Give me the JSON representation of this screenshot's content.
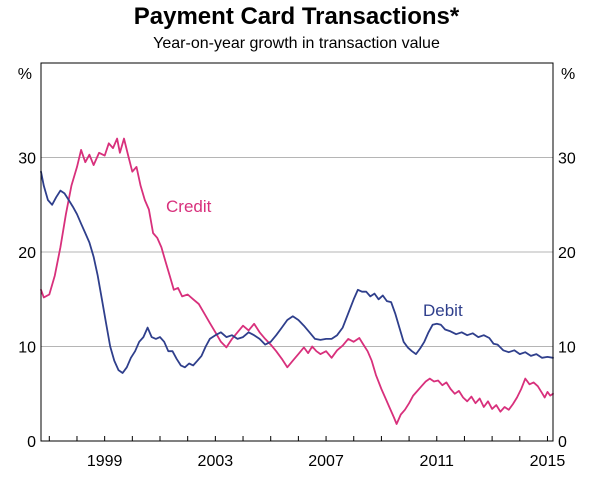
{
  "chart_data": {
    "type": "line",
    "title": "Payment Card Transactions*",
    "subtitle": "Year-on-year growth in transaction value",
    "y_unit_left": "%",
    "y_unit_right": "%",
    "xlim": [
      1996.7,
      2015.2
    ],
    "ylim": [
      0,
      40
    ],
    "x_ticks": [
      1999,
      2003,
      2007,
      2011,
      2015
    ],
    "y_ticks": [
      0,
      10,
      20,
      30
    ],
    "grid": true,
    "series": [
      {
        "name": "Credit",
        "color": "#d8307c",
        "points": [
          [
            1996.7,
            16.0
          ],
          [
            1996.8,
            15.2
          ],
          [
            1997.0,
            15.5
          ],
          [
            1997.2,
            17.5
          ],
          [
            1997.4,
            20.5
          ],
          [
            1997.6,
            24.0
          ],
          [
            1997.8,
            27.0
          ],
          [
            1998.0,
            29.0
          ],
          [
            1998.15,
            30.8
          ],
          [
            1998.3,
            29.5
          ],
          [
            1998.45,
            30.3
          ],
          [
            1998.6,
            29.2
          ],
          [
            1998.8,
            30.5
          ],
          [
            1999.0,
            30.2
          ],
          [
            1999.15,
            31.5
          ],
          [
            1999.3,
            31.0
          ],
          [
            1999.45,
            32.0
          ],
          [
            1999.55,
            30.5
          ],
          [
            1999.7,
            32.0
          ],
          [
            1999.85,
            30.2
          ],
          [
            2000.0,
            28.5
          ],
          [
            2000.15,
            29.0
          ],
          [
            2000.3,
            27.0
          ],
          [
            2000.45,
            25.5
          ],
          [
            2000.6,
            24.5
          ],
          [
            2000.75,
            22.0
          ],
          [
            2000.9,
            21.5
          ],
          [
            2001.05,
            20.5
          ],
          [
            2001.2,
            19.0
          ],
          [
            2001.35,
            17.5
          ],
          [
            2001.5,
            16.0
          ],
          [
            2001.65,
            16.2
          ],
          [
            2001.8,
            15.3
          ],
          [
            2002.0,
            15.5
          ],
          [
            2002.2,
            15.0
          ],
          [
            2002.4,
            14.5
          ],
          [
            2002.6,
            13.5
          ],
          [
            2002.8,
            12.5
          ],
          [
            2003.0,
            11.5
          ],
          [
            2003.2,
            10.5
          ],
          [
            2003.4,
            9.9
          ],
          [
            2003.6,
            10.8
          ],
          [
            2003.8,
            11.5
          ],
          [
            2004.0,
            12.2
          ],
          [
            2004.2,
            11.7
          ],
          [
            2004.4,
            12.4
          ],
          [
            2004.6,
            11.5
          ],
          [
            2004.8,
            10.8
          ],
          [
            2005.0,
            10.2
          ],
          [
            2005.2,
            9.5
          ],
          [
            2005.4,
            8.7
          ],
          [
            2005.6,
            7.8
          ],
          [
            2005.8,
            8.5
          ],
          [
            2006.0,
            9.2
          ],
          [
            2006.2,
            9.9
          ],
          [
            2006.35,
            9.3
          ],
          [
            2006.5,
            10.0
          ],
          [
            2006.65,
            9.5
          ],
          [
            2006.8,
            9.2
          ],
          [
            2007.0,
            9.5
          ],
          [
            2007.2,
            8.8
          ],
          [
            2007.4,
            9.6
          ],
          [
            2007.6,
            10.1
          ],
          [
            2007.8,
            10.8
          ],
          [
            2008.0,
            10.5
          ],
          [
            2008.2,
            10.9
          ],
          [
            2008.35,
            10.2
          ],
          [
            2008.5,
            9.5
          ],
          [
            2008.65,
            8.5
          ],
          [
            2008.8,
            7.0
          ],
          [
            2009.0,
            5.5
          ],
          [
            2009.15,
            4.5
          ],
          [
            2009.3,
            3.5
          ],
          [
            2009.45,
            2.5
          ],
          [
            2009.55,
            1.8
          ],
          [
            2009.7,
            2.8
          ],
          [
            2009.85,
            3.3
          ],
          [
            2010.0,
            4.0
          ],
          [
            2010.15,
            4.8
          ],
          [
            2010.3,
            5.3
          ],
          [
            2010.45,
            5.8
          ],
          [
            2010.6,
            6.3
          ],
          [
            2010.75,
            6.6
          ],
          [
            2010.9,
            6.3
          ],
          [
            2011.05,
            6.4
          ],
          [
            2011.2,
            5.9
          ],
          [
            2011.35,
            6.2
          ],
          [
            2011.5,
            5.5
          ],
          [
            2011.65,
            5.0
          ],
          [
            2011.8,
            5.3
          ],
          [
            2011.95,
            4.6
          ],
          [
            2012.1,
            4.2
          ],
          [
            2012.25,
            4.7
          ],
          [
            2012.4,
            4.0
          ],
          [
            2012.55,
            4.5
          ],
          [
            2012.7,
            3.6
          ],
          [
            2012.85,
            4.2
          ],
          [
            2013.0,
            3.4
          ],
          [
            2013.15,
            3.8
          ],
          [
            2013.3,
            3.1
          ],
          [
            2013.45,
            3.6
          ],
          [
            2013.6,
            3.3
          ],
          [
            2013.75,
            3.9
          ],
          [
            2013.9,
            4.6
          ],
          [
            2014.05,
            5.5
          ],
          [
            2014.2,
            6.6
          ],
          [
            2014.35,
            6.0
          ],
          [
            2014.5,
            6.2
          ],
          [
            2014.65,
            5.8
          ],
          [
            2014.8,
            5.1
          ],
          [
            2014.9,
            4.6
          ],
          [
            2015.0,
            5.2
          ],
          [
            2015.1,
            4.8
          ],
          [
            2015.2,
            5.0
          ]
        ]
      },
      {
        "name": "Debit",
        "color": "#2f3f8c",
        "points": [
          [
            1996.7,
            28.5
          ],
          [
            1996.8,
            27.0
          ],
          [
            1996.95,
            25.5
          ],
          [
            1997.1,
            25.0
          ],
          [
            1997.25,
            25.8
          ],
          [
            1997.4,
            26.5
          ],
          [
            1997.55,
            26.2
          ],
          [
            1997.7,
            25.5
          ],
          [
            1997.85,
            24.8
          ],
          [
            1998.0,
            24.0
          ],
          [
            1998.15,
            23.0
          ],
          [
            1998.3,
            22.0
          ],
          [
            1998.45,
            21.0
          ],
          [
            1998.6,
            19.5
          ],
          [
            1998.75,
            17.5
          ],
          [
            1998.9,
            15.0
          ],
          [
            1999.05,
            12.5
          ],
          [
            1999.2,
            10.0
          ],
          [
            1999.35,
            8.5
          ],
          [
            1999.5,
            7.5
          ],
          [
            1999.65,
            7.2
          ],
          [
            1999.8,
            7.8
          ],
          [
            1999.95,
            8.8
          ],
          [
            2000.1,
            9.5
          ],
          [
            2000.25,
            10.5
          ],
          [
            2000.4,
            11.0
          ],
          [
            2000.55,
            12.0
          ],
          [
            2000.7,
            11.0
          ],
          [
            2000.85,
            10.8
          ],
          [
            2001.0,
            11.0
          ],
          [
            2001.15,
            10.5
          ],
          [
            2001.3,
            9.5
          ],
          [
            2001.45,
            9.5
          ],
          [
            2001.6,
            8.7
          ],
          [
            2001.75,
            8.0
          ],
          [
            2001.9,
            7.8
          ],
          [
            2002.05,
            8.2
          ],
          [
            2002.2,
            8.0
          ],
          [
            2002.35,
            8.5
          ],
          [
            2002.5,
            9.0
          ],
          [
            2002.65,
            10.0
          ],
          [
            2002.8,
            10.8
          ],
          [
            2003.0,
            11.2
          ],
          [
            2003.2,
            11.5
          ],
          [
            2003.4,
            11.0
          ],
          [
            2003.6,
            11.2
          ],
          [
            2003.8,
            10.8
          ],
          [
            2004.0,
            11.0
          ],
          [
            2004.2,
            11.5
          ],
          [
            2004.4,
            11.2
          ],
          [
            2004.6,
            10.8
          ],
          [
            2004.8,
            10.2
          ],
          [
            2005.0,
            10.5
          ],
          [
            2005.2,
            11.2
          ],
          [
            2005.4,
            12.0
          ],
          [
            2005.6,
            12.8
          ],
          [
            2005.8,
            13.2
          ],
          [
            2006.0,
            12.8
          ],
          [
            2006.2,
            12.2
          ],
          [
            2006.4,
            11.5
          ],
          [
            2006.6,
            10.8
          ],
          [
            2006.8,
            10.7
          ],
          [
            2007.0,
            10.8
          ],
          [
            2007.2,
            10.8
          ],
          [
            2007.4,
            11.2
          ],
          [
            2007.6,
            12.0
          ],
          [
            2007.8,
            13.5
          ],
          [
            2008.0,
            15.0
          ],
          [
            2008.15,
            16.0
          ],
          [
            2008.3,
            15.8
          ],
          [
            2008.45,
            15.8
          ],
          [
            2008.6,
            15.3
          ],
          [
            2008.75,
            15.6
          ],
          [
            2008.9,
            15.0
          ],
          [
            2009.05,
            15.4
          ],
          [
            2009.2,
            14.8
          ],
          [
            2009.35,
            14.7
          ],
          [
            2009.5,
            13.5
          ],
          [
            2009.65,
            12.0
          ],
          [
            2009.8,
            10.5
          ],
          [
            2009.95,
            9.9
          ],
          [
            2010.1,
            9.5
          ],
          [
            2010.25,
            9.2
          ],
          [
            2010.4,
            9.8
          ],
          [
            2010.55,
            10.5
          ],
          [
            2010.7,
            11.5
          ],
          [
            2010.85,
            12.3
          ],
          [
            2011.0,
            12.4
          ],
          [
            2011.15,
            12.3
          ],
          [
            2011.3,
            11.8
          ],
          [
            2011.5,
            11.6
          ],
          [
            2011.7,
            11.3
          ],
          [
            2011.9,
            11.5
          ],
          [
            2012.1,
            11.2
          ],
          [
            2012.3,
            11.4
          ],
          [
            2012.5,
            11.0
          ],
          [
            2012.7,
            11.2
          ],
          [
            2012.9,
            10.9
          ],
          [
            2013.05,
            10.3
          ],
          [
            2013.2,
            10.2
          ],
          [
            2013.4,
            9.6
          ],
          [
            2013.6,
            9.4
          ],
          [
            2013.8,
            9.6
          ],
          [
            2014.0,
            9.2
          ],
          [
            2014.2,
            9.4
          ],
          [
            2014.4,
            9.0
          ],
          [
            2014.6,
            9.2
          ],
          [
            2014.8,
            8.8
          ],
          [
            2015.0,
            8.9
          ],
          [
            2015.2,
            8.8
          ]
        ]
      }
    ]
  }
}
